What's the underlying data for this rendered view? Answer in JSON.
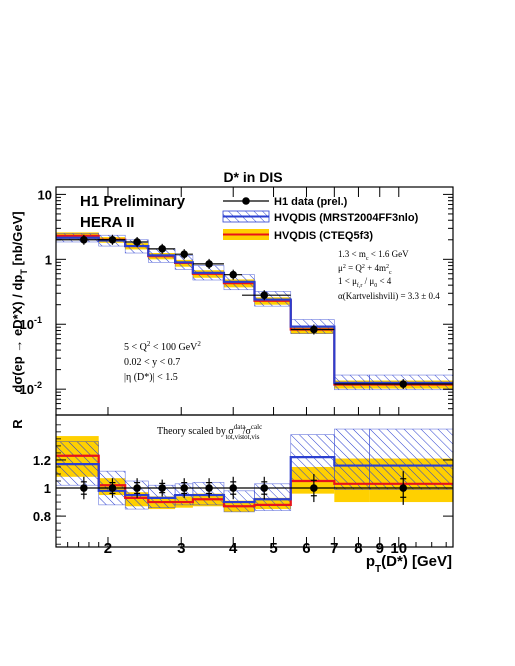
{
  "chart_data": [
    {
      "type": "line",
      "panel": "cross-section",
      "title": "D* in DIS",
      "xlabel": "p_T(D*) [GeV]",
      "ylabel": "dσ(ep → eD*X) / dp_T [nb/GeV]",
      "ylabel_parts": {
        "main": "dσ(ep → eD*X) / dp",
        "sub": "T",
        "unit": " [nb/GeV]"
      },
      "x_scale": "log",
      "y_scale": "log",
      "xlim": [
        1.5,
        13.5
      ],
      "ylim": [
        0.004,
        13
      ],
      "y_ticks": [
        {
          "v": 10,
          "label": "10"
        },
        {
          "v": 1,
          "label": "1"
        },
        {
          "v": 0.1,
          "label": "10",
          "exp": "-1"
        },
        {
          "v": 0.01,
          "label": "10",
          "exp": "-2"
        }
      ],
      "labels": {
        "experiment": "H1 Preliminary",
        "run": "HERA II",
        "cuts": {
          "q2": "5 < Q",
          "q2_tail": " < 100 GeV",
          "y": "0.02 < y < 0.7",
          "eta": "|η (D*)| < 1.5"
        },
        "params": {
          "mc": "1.3 < m",
          "mc_sub": "c",
          "mc_tail": " < 1.6 GeV",
          "mu2": "μ",
          "mu2_tail": " = Q",
          "mu2_tail2": " + 4m",
          "mu2_sub": "c",
          "mu_ratio": "1 < μ",
          "mu_ratio_tail": " / μ",
          "mu_ratio_tail2": " < 4",
          "mu_sub_f": "f,r",
          "mu_sub_0": "0",
          "alpha": "α(Kartvelishvili) = 3.3 ± 0.4"
        }
      },
      "series": [
        {
          "name": "H1 data (prel.)",
          "kind": "data",
          "x": [
            1.75,
            2.05,
            2.35,
            2.7,
            3.05,
            3.5,
            4.0,
            4.75,
            6.25,
            10.25
          ],
          "x_err": [
            [
              1.5,
              2.0
            ],
            [
              1.9,
              2.2
            ],
            [
              2.2,
              2.5
            ],
            [
              2.5,
              2.9
            ],
            [
              2.9,
              3.2
            ],
            [
              3.2,
              3.8
            ],
            [
              3.8,
              4.2
            ],
            [
              4.2,
              5.5
            ],
            [
              5.5,
              7.0
            ],
            [
              7.0,
              13.5
            ]
          ],
          "y": [
            2.0,
            2.0,
            1.85,
            1.45,
            1.2,
            0.85,
            0.58,
            0.28,
            0.083,
            0.012
          ]
        },
        {
          "name": "HVQDIS (MRST2004FF3nlo)",
          "kind": "band",
          "style": "hatched",
          "color": "#2b3fd0",
          "bins": [
            1.5,
            1.9,
            2.2,
            2.5,
            2.9,
            3.2,
            3.8,
            4.5,
            5.5,
            7.0,
            8.5,
            13.5
          ],
          "central": [
            2.15,
            1.95,
            1.6,
            1.15,
            0.9,
            0.62,
            0.45,
            0.24,
            0.092,
            0.0125,
            0.0125
          ],
          "low": [
            1.85,
            1.6,
            1.25,
            0.9,
            0.7,
            0.48,
            0.34,
            0.19,
            0.072,
            0.0098,
            0.0098
          ],
          "high": [
            2.5,
            2.35,
            2.0,
            1.45,
            1.15,
            0.8,
            0.58,
            0.32,
            0.118,
            0.0165,
            0.0165
          ]
        },
        {
          "name": "HVQDIS (CTEQ5f3)",
          "kind": "band",
          "style": "solid",
          "color": "#ffd000",
          "line_color": "#e8141a",
          "bins": [
            1.5,
            1.9,
            2.2,
            2.5,
            2.9,
            3.2,
            3.8,
            4.5,
            5.5,
            7.0,
            8.5,
            13.5
          ],
          "central": [
            2.3,
            2.0,
            1.6,
            1.12,
            0.88,
            0.6,
            0.43,
            0.23,
            0.083,
            0.0118,
            0.0118
          ],
          "low": [
            2.05,
            1.8,
            1.42,
            1.0,
            0.77,
            0.52,
            0.37,
            0.2,
            0.071,
            0.0102,
            0.0102
          ],
          "high": [
            2.6,
            2.2,
            1.78,
            1.25,
            0.98,
            0.68,
            0.49,
            0.26,
            0.095,
            0.0136,
            0.0136
          ]
        }
      ]
    },
    {
      "type": "line",
      "panel": "ratio",
      "ylabel": "R",
      "xlabel": "p_T(D*) [GeV]",
      "x_scale": "log",
      "xlim": [
        1.5,
        13.5
      ],
      "ylim": [
        0.58,
        1.52
      ],
      "y_ticks": [
        {
          "v": 1.2,
          "label": "1.2"
        },
        {
          "v": 1.0,
          "label": "1"
        },
        {
          "v": 0.8,
          "label": "0.8"
        }
      ],
      "x_ticks": [
        {
          "v": 2,
          "label": "2",
          "major": true
        },
        {
          "v": 3,
          "label": "3",
          "major": true
        },
        {
          "v": 4,
          "label": "4",
          "major": true
        },
        {
          "v": 5,
          "label": "5",
          "major": true
        },
        {
          "v": 6,
          "label": "6",
          "major": true
        },
        {
          "v": 7,
          "label": "7",
          "major": true
        },
        {
          "v": 8,
          "label": "8",
          "major": true
        },
        {
          "v": 9,
          "label": "9",
          "major": true
        },
        {
          "v": 10,
          "label": "10",
          "major": true
        }
      ],
      "note": {
        "main": "Theory scaled by σ",
        "sup1": "data",
        "sub1": "tot,vis",
        "slash": "/σ",
        "sup2": "calc",
        "sub2": "tot,vis"
      },
      "series": [
        {
          "name": "H1 data (prel.)",
          "kind": "data",
          "x": [
            1.75,
            2.05,
            2.35,
            2.7,
            3.05,
            3.5,
            4.0,
            4.75,
            6.25,
            10.25
          ],
          "x_err": [
            [
              1.5,
              2.0
            ],
            [
              1.9,
              2.2
            ],
            [
              2.2,
              2.5
            ],
            [
              2.5,
              2.9
            ],
            [
              2.9,
              3.2
            ],
            [
              3.2,
              3.8
            ],
            [
              3.8,
              4.2
            ],
            [
              4.2,
              5.5
            ],
            [
              5.5,
              7.0
            ],
            [
              7.0,
              13.5
            ]
          ],
          "y": [
            1.0,
            1.0,
            1.0,
            1.0,
            1.0,
            1.0,
            1.0,
            1.0,
            1.0,
            1.0
          ],
          "y_err": [
            0.08,
            0.07,
            0.07,
            0.06,
            0.07,
            0.07,
            0.08,
            0.08,
            0.1,
            0.12
          ]
        },
        {
          "name": "HVQDIS (MRST2004FF3nlo)",
          "kind": "band",
          "style": "hatched",
          "color": "#2b3fd0",
          "bins": [
            1.5,
            1.9,
            2.2,
            2.5,
            2.9,
            3.2,
            3.8,
            4.5,
            5.5,
            7.0,
            8.5,
            13.5
          ],
          "central": [
            1.17,
            0.98,
            0.95,
            0.93,
            0.95,
            0.95,
            0.9,
            0.92,
            1.22,
            1.16,
            1.16
          ],
          "low": [
            1.02,
            0.88,
            0.85,
            0.86,
            0.88,
            0.88,
            0.83,
            0.84,
            1.05,
            0.99,
            0.99
          ],
          "high": [
            1.33,
            1.12,
            1.05,
            1.02,
            1.03,
            1.04,
            0.98,
            1.03,
            1.38,
            1.42,
            1.42
          ]
        },
        {
          "name": "HVQDIS (CTEQ5f3)",
          "kind": "band",
          "style": "solid",
          "color": "#ffd000",
          "line_color": "#e8141a",
          "bins": [
            1.5,
            1.9,
            2.2,
            2.5,
            2.9,
            3.2,
            3.8,
            4.5,
            5.5,
            7.0,
            8.5,
            13.5
          ],
          "central": [
            1.23,
            1.02,
            0.93,
            0.9,
            0.9,
            0.92,
            0.87,
            0.88,
            1.05,
            1.03,
            1.03
          ],
          "low": [
            1.08,
            0.95,
            0.87,
            0.85,
            0.86,
            0.87,
            0.83,
            0.85,
            0.96,
            0.9,
            0.9
          ],
          "high": [
            1.37,
            1.07,
            0.97,
            0.94,
            0.94,
            0.96,
            0.91,
            0.93,
            1.15,
            1.21,
            1.21
          ]
        }
      ]
    }
  ]
}
